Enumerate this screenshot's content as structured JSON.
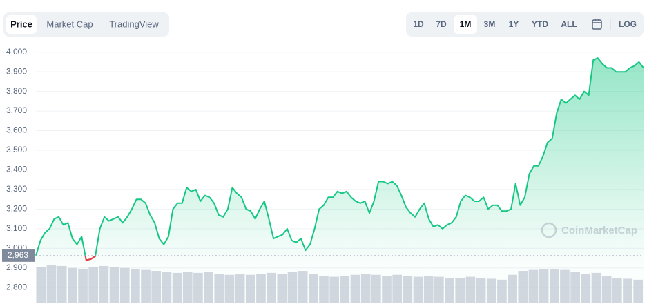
{
  "chart_data": {
    "type": "line",
    "tabs": [
      "Price",
      "Market Cap",
      "TradingView"
    ],
    "active_tab": 0,
    "ranges": [
      "1D",
      "7D",
      "1M",
      "3M",
      "1Y",
      "YTD",
      "ALL"
    ],
    "active_range": 2,
    "log_button": "LOG",
    "watermark": "CoinMarketCap",
    "color": "#16c784",
    "below_color": "#ea3943",
    "volume_color": "#c9cdd8",
    "reference": {
      "value": 2963,
      "label": "2,963"
    },
    "ylim": [
      2720,
      4020
    ],
    "yticks": [
      {
        "value": 4000,
        "label": "4,000"
      },
      {
        "value": 3900,
        "label": "3,900"
      },
      {
        "value": 3800,
        "label": "3,800"
      },
      {
        "value": 3700,
        "label": "3,700"
      },
      {
        "value": 3600,
        "label": "3,600"
      },
      {
        "value": 3500,
        "label": "3,500"
      },
      {
        "value": 3400,
        "label": "3,400"
      },
      {
        "value": 3300,
        "label": "3,300"
      },
      {
        "value": 3200,
        "label": "3,200"
      },
      {
        "value": 3100,
        "label": "3,100"
      },
      {
        "value": 3000,
        "label": "3,000"
      },
      {
        "value": 2900,
        "label": "2,900"
      },
      {
        "value": 2800,
        "label": "2,800"
      }
    ],
    "grid": true,
    "values": [
      2963,
      3040,
      3080,
      3100,
      3150,
      3160,
      3120,
      3130,
      3050,
      3020,
      3060,
      2940,
      2945,
      2960,
      3100,
      3160,
      3140,
      3150,
      3160,
      3130,
      3160,
      3200,
      3250,
      3250,
      3230,
      3170,
      3130,
      3050,
      3020,
      3060,
      3200,
      3230,
      3230,
      3310,
      3290,
      3300,
      3240,
      3270,
      3260,
      3230,
      3170,
      3160,
      3200,
      3310,
      3280,
      3260,
      3200,
      3190,
      3150,
      3200,
      3240,
      3150,
      3050,
      3060,
      3070,
      3100,
      3040,
      3030,
      3050,
      2990,
      3020,
      3100,
      3200,
      3220,
      3260,
      3260,
      3290,
      3280,
      3290,
      3260,
      3240,
      3230,
      3240,
      3180,
      3240,
      3340,
      3340,
      3330,
      3340,
      3320,
      3270,
      3210,
      3180,
      3160,
      3200,
      3230,
      3150,
      3110,
      3120,
      3100,
      3120,
      3130,
      3160,
      3240,
      3270,
      3260,
      3240,
      3240,
      3260,
      3200,
      3220,
      3220,
      3190,
      3190,
      3200,
      3330,
      3220,
      3260,
      3380,
      3420,
      3420,
      3470,
      3540,
      3560,
      3690,
      3760,
      3740,
      3760,
      3780,
      3760,
      3800,
      3780,
      3960,
      3970,
      3940,
      3920,
      3920,
      3900,
      3900,
      3900,
      3920,
      3930,
      3950,
      3920
    ],
    "volume_values": [
      2905,
      2915,
      2910,
      2900,
      2895,
      2905,
      2910,
      2905,
      2900,
      2895,
      2890,
      2885,
      2880,
      2875,
      2880,
      2875,
      2880,
      2870,
      2865,
      2870,
      2865,
      2870,
      2875,
      2870,
      2880,
      2885,
      2870,
      2860,
      2855,
      2860,
      2865,
      2870,
      2865,
      2860,
      2865,
      2860,
      2855,
      2860,
      2855,
      2850,
      2850,
      2855,
      2850,
      2845,
      2840,
      2865,
      2885,
      2890,
      2895,
      2895,
      2890,
      2880,
      2870,
      2875,
      2860,
      2850,
      2845,
      2840
    ]
  }
}
